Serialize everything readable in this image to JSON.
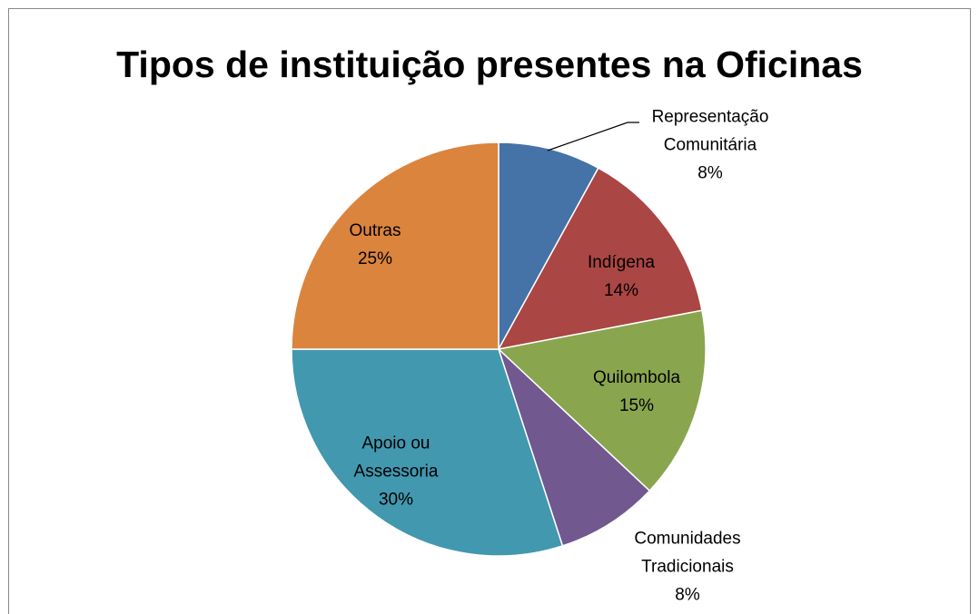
{
  "chart_data": {
    "type": "pie",
    "title": "Tipos de instituição presentes na Oficinas",
    "categories": [
      "Representação Comunitária",
      "Indígena",
      "Quilombola",
      "Comunidades Tradicionais",
      "Apoio ou Assessoria",
      "Outras"
    ],
    "values": [
      8,
      14,
      15,
      8,
      30,
      25
    ],
    "value_labels": [
      "8%",
      "14%",
      "15%",
      "8%",
      "30%",
      "25%"
    ],
    "colors": [
      "#4572a7",
      "#aa4643",
      "#89a54e",
      "#71588f",
      "#4198af",
      "#db843d"
    ]
  }
}
